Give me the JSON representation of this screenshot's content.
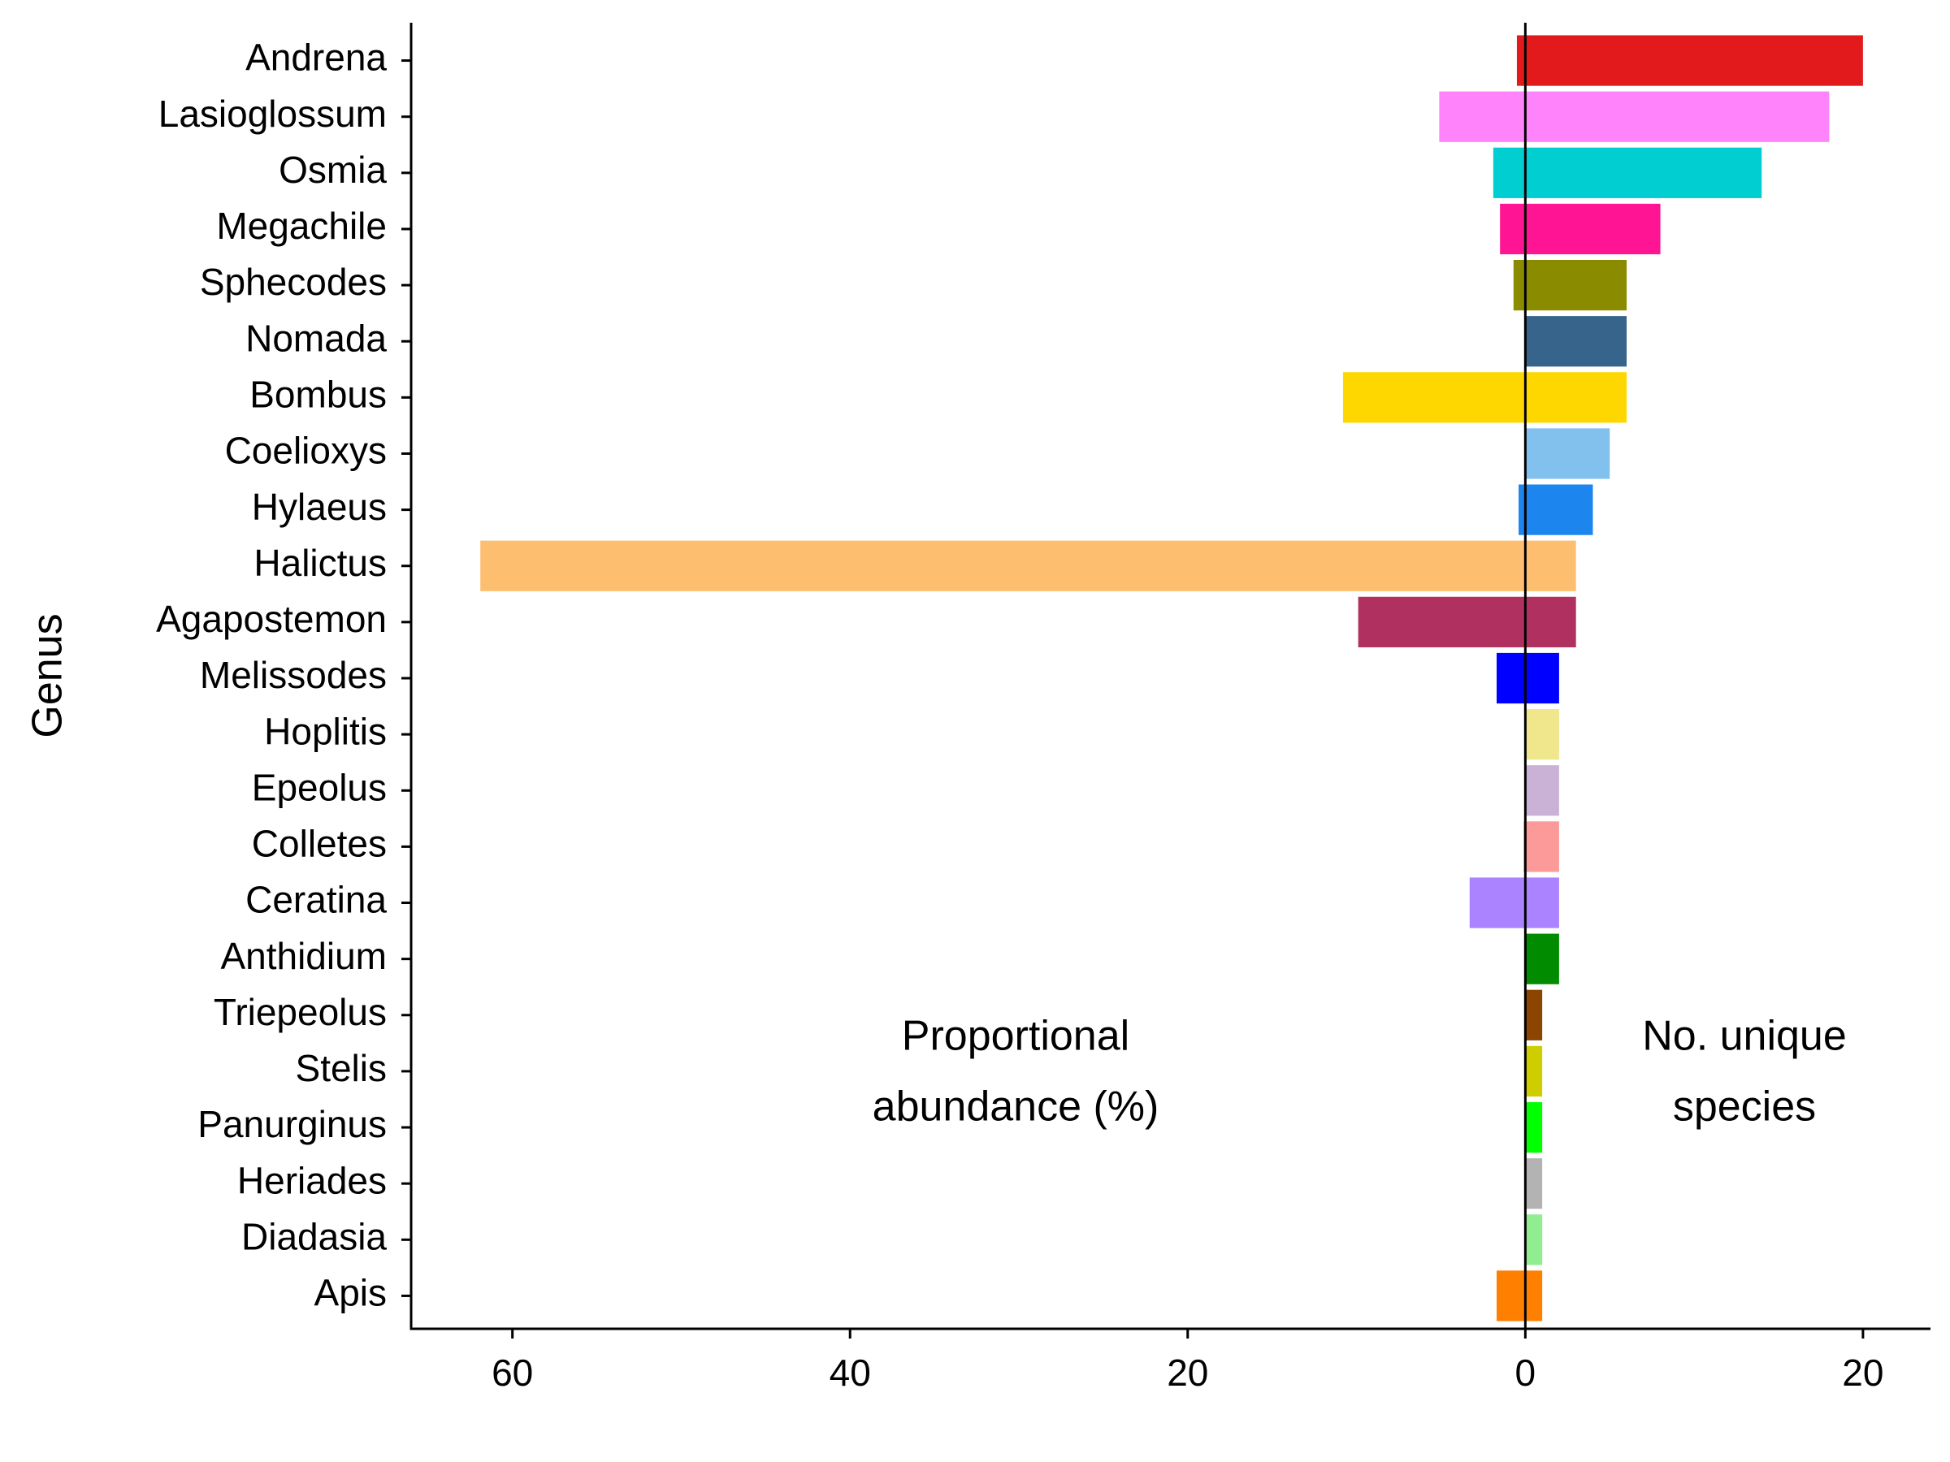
{
  "chart_data": {
    "type": "diverging-bar",
    "y_axis_label": "Genus",
    "categories": [
      "Andrena",
      "Lasioglossum",
      "Osmia",
      "Megachile",
      "Sphecodes",
      "Nomada",
      "Bombus",
      "Coelioxys",
      "Hylaeus",
      "Halictus",
      "Agapostemon",
      "Melissodes",
      "Hoplitis",
      "Epeolus",
      "Colletes",
      "Ceratina",
      "Anthidium",
      "Triepeolus",
      "Stelis",
      "Panurginus",
      "Heriades",
      "Diadasia",
      "Apis"
    ],
    "colors": [
      "#e31a1c",
      "#ff83fa",
      "#00ced1",
      "#ff1493",
      "#8b8b00",
      "#36648b",
      "#ffd700",
      "#82c0ee",
      "#1c86ee",
      "#fdbf6f",
      "#b03060",
      "#0000ff",
      "#f0e68c",
      "#cab2d6",
      "#fb9a99",
      "#ab82ff",
      "#008b00",
      "#8b4500",
      "#cdcd00",
      "#00ff00",
      "#b3b3b3",
      "#90ee90",
      "#ff7f00"
    ],
    "series": [
      {
        "label": [
          "Proportional",
          "abundance (%)"
        ],
        "values": [
          -0.5,
          -5.1,
          -1.9,
          -1.5,
          -0.7,
          0,
          -10.8,
          0,
          -0.4,
          -61.9,
          -9.9,
          -1.7,
          0,
          0,
          -0.1,
          -3.3,
          0,
          0,
          0,
          0,
          0,
          0,
          -1.7
        ]
      },
      {
        "label": [
          "No. unique",
          "species"
        ],
        "values": [
          20,
          18,
          14,
          8,
          6,
          6,
          6,
          5,
          4,
          3,
          3,
          2,
          2,
          2,
          2,
          2,
          2,
          1,
          1,
          1,
          1,
          1,
          1
        ]
      }
    ],
    "xlim": [
      -66,
      24
    ],
    "xticks": [
      {
        "value": -60,
        "label": "60"
      },
      {
        "value": -40,
        "label": "40"
      },
      {
        "value": -20,
        "label": "20"
      },
      0,
      20
    ],
    "grid": false
  }
}
